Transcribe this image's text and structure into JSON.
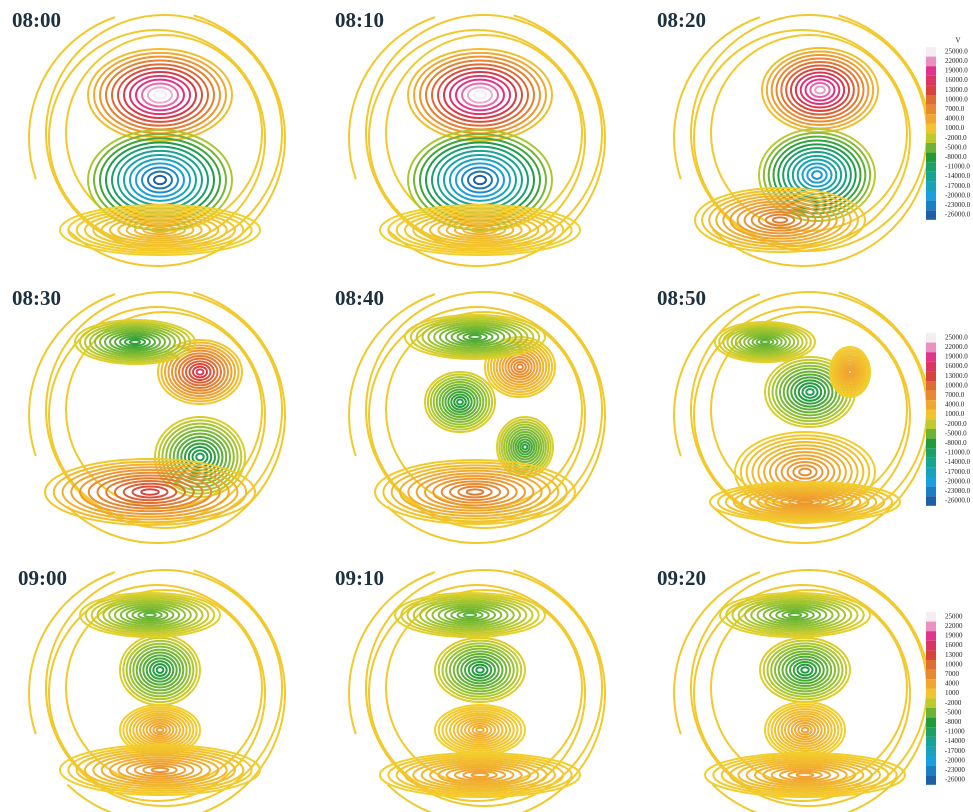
{
  "panels": [
    {
      "title": "08:00"
    },
    {
      "title": "08:10"
    },
    {
      "title": "08:20"
    },
    {
      "title": "08:30"
    },
    {
      "title": "08:40"
    },
    {
      "title": "08:50"
    },
    {
      "title": "09:00"
    },
    {
      "title": "09:10"
    },
    {
      "title": "09:20"
    }
  ],
  "colorbars": [
    {
      "unit": "V",
      "labels": [
        "25000.0",
        "22000.0",
        "19000.0",
        "16000.0",
        "13000.0",
        "10000.0",
        "7000.0",
        "4000.0",
        "1000.0",
        "-2000.0",
        "-5000.0",
        "-8000.0",
        "-11000.0",
        "-14000.0",
        "-17000.0",
        "-20000.0",
        "-23000.0",
        "-26000.0"
      ]
    },
    {
      "labels": [
        "25000.0",
        "22000.0",
        "19000.0",
        "16000.0",
        "13000.0",
        "10000.0",
        "7000.0",
        "4000.0",
        "1000.0",
        "-2000.0",
        "-5000.0",
        "-8000.0",
        "-11000.0",
        "-14000.0",
        "-17000.0",
        "-20000.0",
        "-23000.0",
        "-26000.0"
      ]
    },
    {
      "labels": [
        "25000",
        "22000",
        "19000",
        "16000",
        "13000",
        "10000",
        "7000",
        "4000",
        "1000",
        "-2000",
        "-5000",
        "-8000",
        "-11000",
        "-14000",
        "-17000",
        "-20000",
        "-23000",
        "-26000"
      ]
    }
  ]
}
